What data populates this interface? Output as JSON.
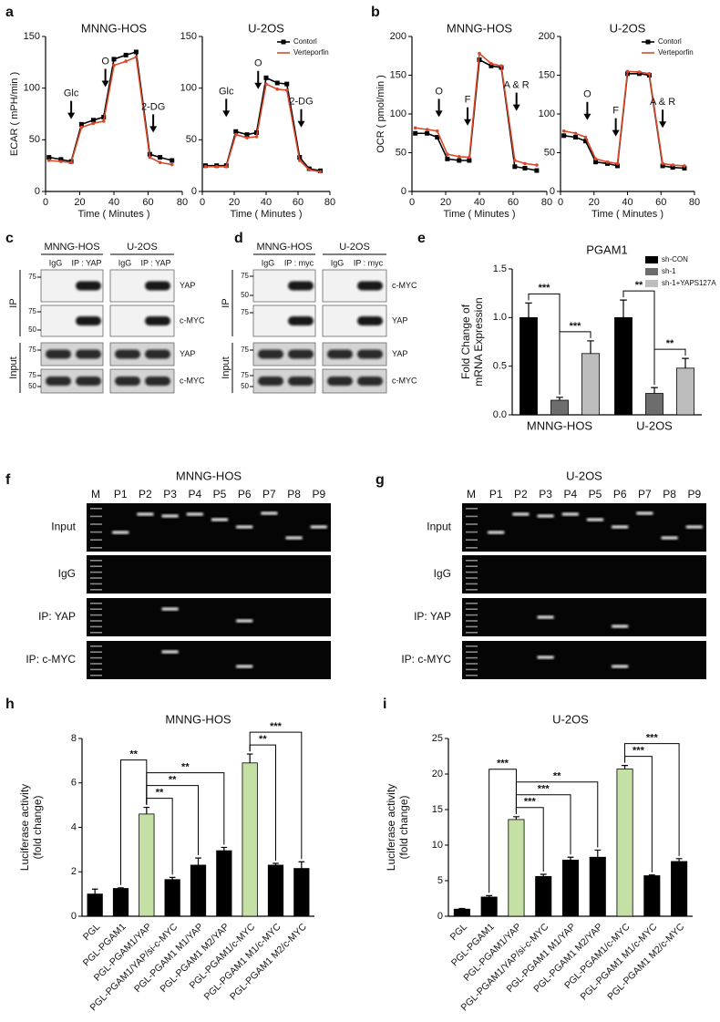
{
  "panel_labels": [
    "a",
    "b",
    "c",
    "d",
    "e",
    "f",
    "g",
    "h",
    "i"
  ],
  "chart_data": [
    {
      "type": "line",
      "title": "MNNG-HOS",
      "xlabel": "Time ( Minutes )",
      "ylabel": "ECAR ( mPH/min )",
      "x": [
        2,
        9,
        15,
        21,
        28,
        34,
        40,
        47,
        53,
        61,
        67,
        74
      ],
      "series": [
        {
          "color": "#000000",
          "marker": "square",
          "values": [
            33,
            31,
            29,
            65,
            69,
            72,
            128,
            132,
            135,
            36,
            33,
            30
          ]
        },
        {
          "color": "#d9482b",
          "marker": "circle",
          "values": [
            30,
            29,
            28,
            62,
            66,
            68,
            122,
            126,
            130,
            33,
            28,
            26
          ]
        }
      ],
      "xlim": [
        0,
        80
      ],
      "xticks": [
        0,
        20,
        40,
        60,
        80
      ],
      "ylim": [
        0,
        150
      ],
      "yticks": [
        0,
        50,
        100,
        150
      ],
      "annotations": [
        {
          "text": "Glc",
          "x": 15,
          "y": 70
        },
        {
          "text": "O",
          "x": 35,
          "y": 101
        },
        {
          "text": "2-DG",
          "x": 63,
          "y": 57
        }
      ]
    },
    {
      "type": "line",
      "title": "U-2OS",
      "xlabel": "Time ( Minutes )",
      "x": [
        2,
        9,
        15,
        21,
        28,
        34,
        40,
        47,
        53,
        61,
        67,
        74
      ],
      "series": [
        {
          "name": "Contorl",
          "color": "#000000",
          "marker": "square",
          "values": [
            25,
            25,
            25,
            58,
            55,
            57,
            110,
            105,
            104,
            33,
            22,
            20
          ]
        },
        {
          "name": "Verteporfin",
          "color": "#d9482b",
          "marker": "circle",
          "values": [
            24,
            24,
            24,
            55,
            52,
            53,
            104,
            99,
            98,
            30,
            21,
            19
          ]
        }
      ],
      "xlim": [
        0,
        80
      ],
      "xticks": [
        0,
        20,
        40,
        60,
        80
      ],
      "ylim": [
        0,
        150
      ],
      "yticks": [
        0,
        50,
        100,
        150
      ],
      "legend": "upper right",
      "annotations": [
        {
          "text": "Glc",
          "x": 15,
          "y": 72
        },
        {
          "text": "O",
          "x": 35,
          "y": 99
        },
        {
          "text": "2-DG",
          "x": 62,
          "y": 62
        }
      ]
    },
    {
      "type": "line",
      "title": "MNNG-HOS",
      "xlabel": "Time ( Minutes )",
      "ylabel": "OCR ( pmol/min )",
      "x": [
        2,
        9,
        15,
        21,
        28,
        34,
        40,
        47,
        53,
        61,
        67,
        74
      ],
      "series": [
        {
          "color": "#000000",
          "marker": "square",
          "values": [
            75,
            75,
            70,
            42,
            40,
            40,
            170,
            162,
            160,
            32,
            30,
            27
          ]
        },
        {
          "color": "#d9482b",
          "marker": "circle",
          "values": [
            82,
            80,
            78,
            48,
            45,
            44,
            178,
            165,
            162,
            40,
            36,
            34
          ]
        }
      ],
      "xlim": [
        0,
        80
      ],
      "xticks": [
        0,
        20,
        40,
        60,
        80
      ],
      "ylim": [
        0,
        200
      ],
      "yticks": [
        0,
        50,
        100,
        150,
        200
      ],
      "annotations": [
        {
          "text": "O",
          "x": 16,
          "y": 96
        },
        {
          "text": "F",
          "x": 33,
          "y": 85
        },
        {
          "text": "A & R",
          "x": 62,
          "y": 104
        }
      ]
    },
    {
      "type": "line",
      "title": "U-2OS",
      "xlabel": "Time ( Minutes )",
      "x": [
        2,
        9,
        15,
        21,
        28,
        34,
        40,
        47,
        53,
        61,
        67,
        74
      ],
      "series": [
        {
          "name": "Contorl",
          "color": "#000000",
          "marker": "square",
          "values": [
            72,
            70,
            65,
            38,
            36,
            33,
            152,
            152,
            150,
            33,
            31,
            30
          ]
        },
        {
          "name": "Verteporfin",
          "color": "#d9482b",
          "marker": "circle",
          "values": [
            78,
            75,
            70,
            42,
            38,
            36,
            155,
            154,
            152,
            36,
            34,
            33
          ]
        }
      ],
      "xlim": [
        0,
        80
      ],
      "xticks": [
        0,
        20,
        40,
        60,
        80
      ],
      "ylim": [
        0,
        200
      ],
      "yticks": [
        0,
        50,
        100,
        150,
        200
      ],
      "legend": "upper right",
      "annotations": [
        {
          "text": "O",
          "x": 16,
          "y": 92
        },
        {
          "text": "F",
          "x": 33,
          "y": 71
        },
        {
          "text": "A & R",
          "x": 61,
          "y": 82
        }
      ]
    },
    {
      "type": "bar",
      "title": "PGAM1",
      "ylabel": [
        "Fold Change of",
        "mRNA Expression"
      ],
      "categories": [
        "MNNG-HOS",
        "U-2OS"
      ],
      "series": [
        {
          "name": "sh-CON",
          "color": "#000000",
          "values": [
            1.0,
            1.0
          ],
          "errors": [
            0.15,
            0.18
          ]
        },
        {
          "name": "sh-1",
          "color": "#6d6d6d",
          "values": [
            0.15,
            0.22
          ],
          "errors": [
            0.03,
            0.06
          ]
        },
        {
          "name": "sh-1+YAPS127A",
          "color": "#bdbdbd",
          "values": [
            0.63,
            0.48
          ],
          "errors": [
            0.13,
            0.1
          ]
        }
      ],
      "ylim": [
        0,
        1.5
      ],
      "yticks": [
        {
          "value": 0,
          "label": "0.0"
        },
        0.5,
        {
          "value": 1,
          "label": "1.0"
        },
        1.5
      ],
      "legend": "upper right",
      "comparisons": [
        {
          "group": 0,
          "from": 1,
          "to": 2,
          "label": "***"
        },
        {
          "group": 0,
          "from": 0,
          "to": 1,
          "label": "***"
        },
        {
          "group": 1,
          "from": 1,
          "to": 2,
          "label": "**"
        },
        {
          "group": 1,
          "from": 0,
          "to": 1,
          "label": "**"
        }
      ]
    },
    {
      "type": "bar",
      "title": "MNNG-HOS",
      "ylabel": [
        "Luciferase activity",
        "(fold change)"
      ],
      "categories": [
        "PGL",
        "PGL-PGAM1",
        "PGL-PGAM1/YAP",
        "PGL-PGAM1/YAP/si-c-MYC",
        "PGL-PGAM1 M1/YAP",
        "PGL-PGAM1 M2/YAP",
        "PGL-PGAM1/c-MYC",
        "PGL-PGAM1 M1/c-MYC",
        "PGL-PGAM1 M2/c-MYC"
      ],
      "values": [
        1.0,
        1.25,
        4.6,
        1.65,
        2.3,
        2.95,
        6.9,
        2.3,
        2.15
      ],
      "errors": [
        0.22,
        0.03,
        0.3,
        0.1,
        0.32,
        0.15,
        0.4,
        0.08,
        0.3
      ],
      "colors": [
        "#000000",
        "#000000",
        "#c5e0a5",
        "#000000",
        "#000000",
        "#000000",
        "#c5e0a5",
        "#000000",
        "#000000"
      ],
      "ylim": [
        0,
        8
      ],
      "yticks": [
        0,
        2,
        4,
        6,
        8
      ],
      "comparisons": [
        {
          "from": 2,
          "to": 3,
          "label": "**"
        },
        {
          "from": 2,
          "to": 4,
          "label": "**"
        },
        {
          "from": 2,
          "to": 5,
          "label": "**"
        },
        {
          "from": 1,
          "to": 2,
          "label": "**"
        },
        {
          "from": 6,
          "to": 7,
          "label": "**"
        },
        {
          "from": 6,
          "to": 8,
          "label": "***"
        }
      ]
    },
    {
      "type": "bar",
      "title": "U-2OS",
      "ylabel": [
        "Luciferase activity",
        "(fold change)"
      ],
      "categories": [
        "PGL",
        "PGL-PGAM1",
        "PGL-PGAM1/YAP",
        "PGL-PGAM1/YAP/si-c-MYC",
        "PGL-PGAM1 M1/YAP",
        "PGL-PGAM1 M2/YAP",
        "PGL-PGAM1/c-MYC",
        "PGL-PGAM1 M1/c-MYC",
        "PGL-PGAM1 M2/c-MYC"
      ],
      "values": [
        1.0,
        2.7,
        13.6,
        5.6,
        7.9,
        8.3,
        20.7,
        5.7,
        7.7
      ],
      "errors": [
        0.1,
        0.2,
        0.4,
        0.3,
        0.4,
        1.0,
        0.5,
        0.1,
        0.4
      ],
      "colors": [
        "#000000",
        "#000000",
        "#c5e0a5",
        "#000000",
        "#000000",
        "#000000",
        "#c5e0a5",
        "#000000",
        "#000000"
      ],
      "ylim": [
        0,
        25
      ],
      "yticks": [
        0,
        5,
        10,
        15,
        20,
        25
      ],
      "comparisons": [
        {
          "from": 2,
          "to": 3,
          "label": "***"
        },
        {
          "from": 2,
          "to": 4,
          "label": "***"
        },
        {
          "from": 2,
          "to": 5,
          "label": "**"
        },
        {
          "from": 1,
          "to": 2,
          "label": "***"
        },
        {
          "from": 6,
          "to": 7,
          "label": "***"
        },
        {
          "from": 6,
          "to": 8,
          "label": "***"
        }
      ]
    }
  ],
  "blots": [
    {
      "cell_lines": [
        "MNNG-HOS",
        "U-2OS"
      ],
      "lanes": [
        "IgG",
        "IP : YAP"
      ],
      "sections": [
        "IP",
        "Input"
      ],
      "rows": [
        {
          "markers": [
            75
          ],
          "label": "YAP"
        },
        {
          "markers": [
            75,
            50
          ],
          "label": "c-MYC"
        },
        {
          "markers": [
            75
          ],
          "label": "YAP"
        },
        {
          "markers": [
            75,
            50
          ],
          "label": "c-MYC"
        }
      ]
    },
    {
      "cell_lines": [
        "MNNG-HOS",
        "U-2OS"
      ],
      "lanes": [
        "IgG",
        "IP : myc"
      ],
      "sections": [
        "IP",
        "Input"
      ],
      "rows": [
        {
          "markers": [
            75,
            50
          ],
          "label": "c-MYC"
        },
        {
          "markers": [
            75
          ],
          "label": "YAP"
        },
        {
          "markers": [
            75
          ],
          "label": "YAP"
        },
        {
          "markers": [
            75,
            50
          ],
          "label": "c-MYC"
        }
      ]
    }
  ],
  "gels": [
    {
      "title": "MNNG-HOS",
      "lanes": [
        "M",
        "P1",
        "P2",
        "P3",
        "P4",
        "P5",
        "P6",
        "P7",
        "P8",
        "P9"
      ],
      "rows": [
        "Input",
        "IgG",
        "IP: YAP",
        "IP: c-MYC"
      ]
    },
    {
      "title": "U-2OS",
      "lanes": [
        "M",
        "P1",
        "P2",
        "P3",
        "P4",
        "P5",
        "P6",
        "P7",
        "P8",
        "P9"
      ],
      "rows": [
        "Input",
        "IgG",
        "IP: YAP",
        "IP: c-MYC"
      ]
    }
  ]
}
